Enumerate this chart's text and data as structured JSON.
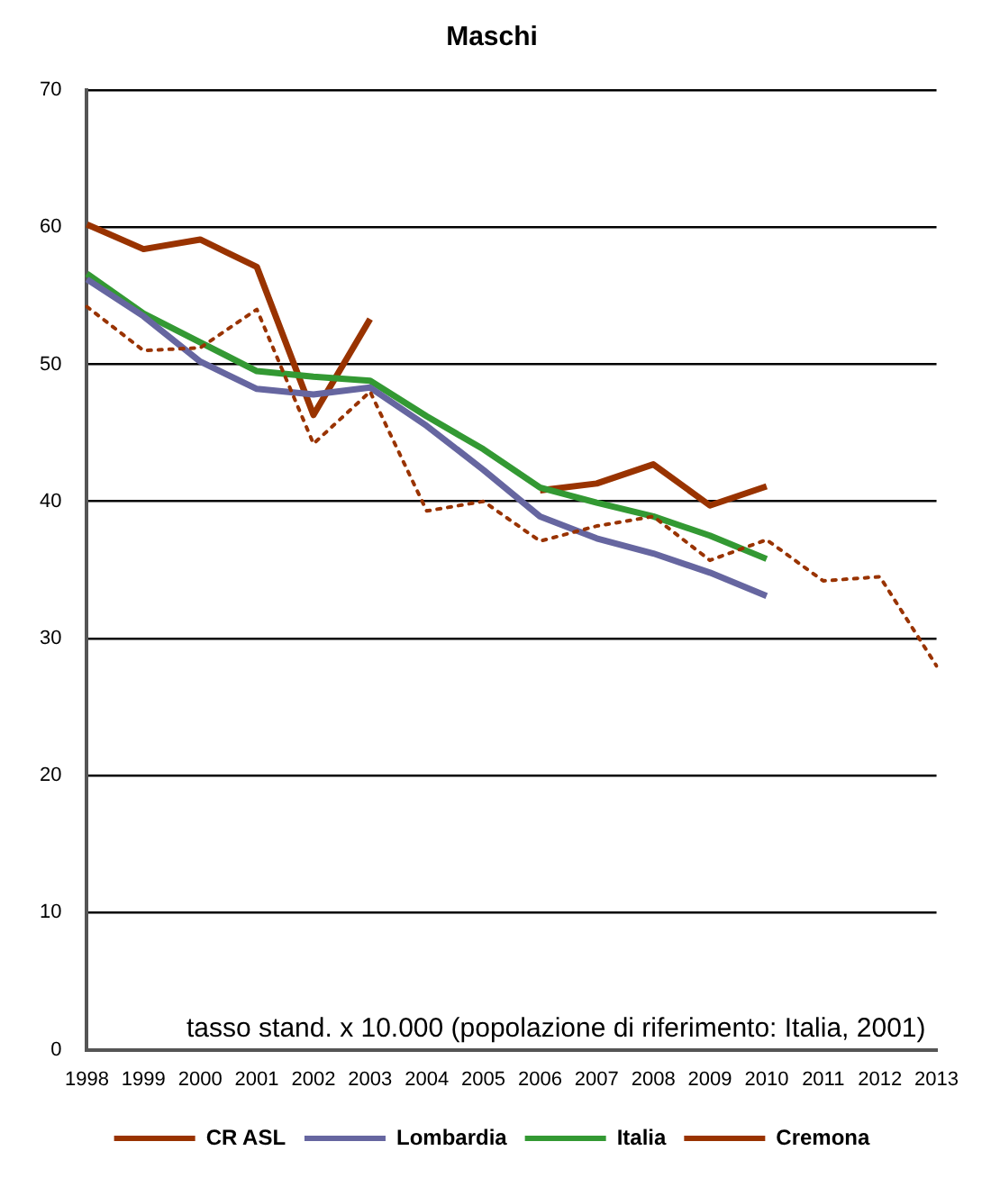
{
  "chart_data": {
    "type": "line",
    "title": "Maschi",
    "categories": [
      "1998",
      "1999",
      "2000",
      "2001",
      "2002",
      "2003",
      "2004",
      "2005",
      "2006",
      "2007",
      "2008",
      "2009",
      "2010",
      "2011",
      "2012",
      "2013"
    ],
    "series": [
      {
        "name": "CR ASL",
        "color": "#993300",
        "line_style": "dotted",
        "values": [
          54.2,
          51.0,
          51.2,
          54.0,
          44.2,
          48.0,
          39.3,
          40.0,
          37.1,
          38.2,
          38.9,
          35.7,
          37.2,
          34.2,
          34.5,
          28.0
        ]
      },
      {
        "name": "Lombardia",
        "color": "#6666a0",
        "values": [
          56.2,
          53.5,
          50.2,
          48.2,
          47.8,
          48.3,
          45.5,
          42.3,
          38.9,
          37.3,
          36.2,
          34.8,
          33.1,
          null,
          null,
          null
        ]
      },
      {
        "name": "Italia",
        "color": "#339933",
        "values": [
          56.6,
          53.7,
          51.6,
          49.5,
          49.1,
          48.8,
          46.2,
          43.8,
          41.0,
          39.9,
          38.9,
          37.5,
          35.8,
          null,
          null,
          null
        ]
      },
      {
        "name": "Cremona",
        "color": "#993300",
        "values": [
          60.2,
          58.4,
          59.1,
          57.1,
          46.3,
          53.3,
          null,
          null,
          40.8,
          41.3,
          42.7,
          39.7,
          41.1,
          null,
          null,
          null
        ]
      }
    ],
    "ylim": [
      0,
      70
    ],
    "yticks": [
      0,
      10,
      20,
      30,
      40,
      50,
      60,
      70
    ],
    "grid": "y",
    "legend": "bottom",
    "marker": "none",
    "annotations": [
      "tasso stand. x 10.000 (popolazione di riferimento: Italia, 2001)"
    ]
  }
}
